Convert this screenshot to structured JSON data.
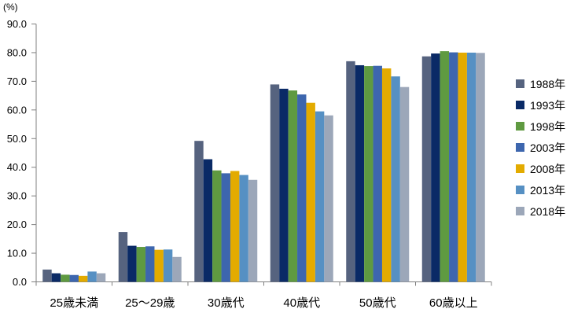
{
  "chart_data": {
    "type": "bar",
    "title": "",
    "xlabel": "",
    "ylabel": "",
    "unit_label": "(%)",
    "ylim": [
      0,
      90
    ],
    "ytick_step": 10,
    "ytick_labels": [
      "0.0",
      "10.0",
      "20.0",
      "30.0",
      "40.0",
      "50.0",
      "60.0",
      "70.0",
      "80.0",
      "90.0"
    ],
    "grid": false,
    "legend_position": "right",
    "categories": [
      "25歳未満",
      "25〜29歳",
      "30歳代",
      "40歳代",
      "50歳代",
      "60歳以上"
    ],
    "series": [
      {
        "name": "1988年",
        "color": "#56637F",
        "values": [
          4.3,
          17.4,
          49.2,
          68.9,
          77.0,
          78.7
        ]
      },
      {
        "name": "1993年",
        "color": "#0A2A66",
        "values": [
          3.0,
          12.6,
          42.8,
          67.4,
          75.6,
          79.7
        ]
      },
      {
        "name": "1998年",
        "color": "#5F9A41",
        "values": [
          2.5,
          12.2,
          38.9,
          66.8,
          75.3,
          80.5
        ]
      },
      {
        "name": "2003年",
        "color": "#3D66AE",
        "values": [
          2.4,
          12.4,
          37.9,
          65.4,
          75.4,
          80.1
        ]
      },
      {
        "name": "2008年",
        "color": "#E3AB00",
        "values": [
          2.1,
          11.2,
          38.7,
          62.5,
          74.5,
          80.0
        ]
      },
      {
        "name": "2013年",
        "color": "#5690C3",
        "values": [
          3.6,
          11.3,
          37.3,
          59.5,
          71.7,
          80.0
        ]
      },
      {
        "name": "2018年",
        "color": "#9CA7B9",
        "values": [
          3.0,
          8.7,
          35.6,
          58.1,
          68.0,
          79.9
        ]
      }
    ],
    "axis_color": "#808080",
    "text_color": "#000000"
  }
}
